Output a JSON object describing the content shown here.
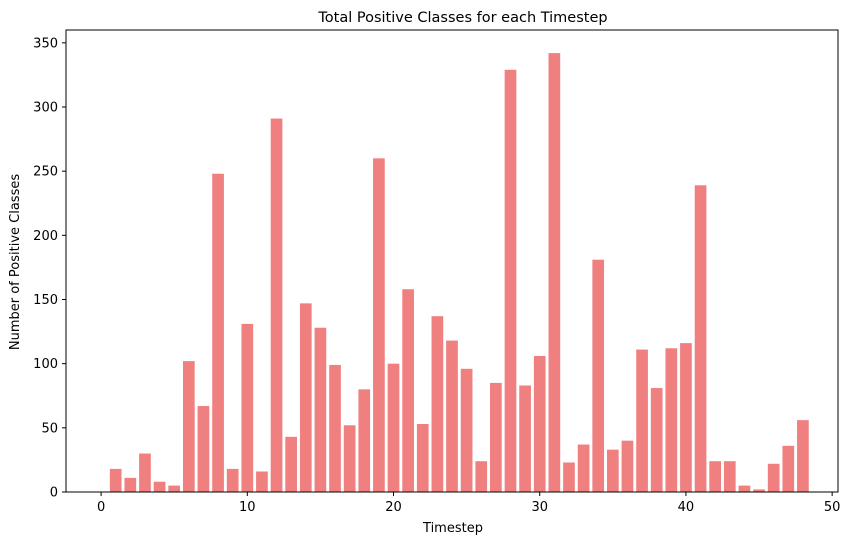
{
  "chart_data": {
    "type": "bar",
    "title": "Total Positive Classes for each Timestep",
    "xlabel": "Timestep",
    "ylabel": "Number of Positive Classes",
    "xlim": [
      -2.4,
      50.4
    ],
    "ylim": [
      0,
      360
    ],
    "xticks": [
      0,
      10,
      20,
      30,
      40,
      50
    ],
    "yticks": [
      0,
      50,
      100,
      150,
      200,
      250,
      300,
      350
    ],
    "grid": false,
    "bar_color": "#f08080",
    "x": [
      1,
      2,
      3,
      4,
      5,
      6,
      7,
      8,
      9,
      10,
      11,
      12,
      13,
      14,
      15,
      16,
      17,
      18,
      19,
      20,
      21,
      22,
      23,
      24,
      25,
      26,
      27,
      28,
      29,
      30,
      31,
      32,
      33,
      34,
      35,
      36,
      37,
      38,
      39,
      40,
      41,
      42,
      43,
      44,
      45,
      46,
      47,
      48
    ],
    "values": [
      18,
      11,
      30,
      8,
      5,
      102,
      67,
      248,
      18,
      131,
      16,
      291,
      43,
      147,
      128,
      99,
      52,
      80,
      260,
      100,
      158,
      53,
      137,
      118,
      96,
      24,
      85,
      329,
      83,
      106,
      342,
      23,
      37,
      181,
      33,
      40,
      111,
      81,
      112,
      116,
      239,
      24,
      24,
      5,
      2,
      22,
      36,
      56
    ]
  }
}
